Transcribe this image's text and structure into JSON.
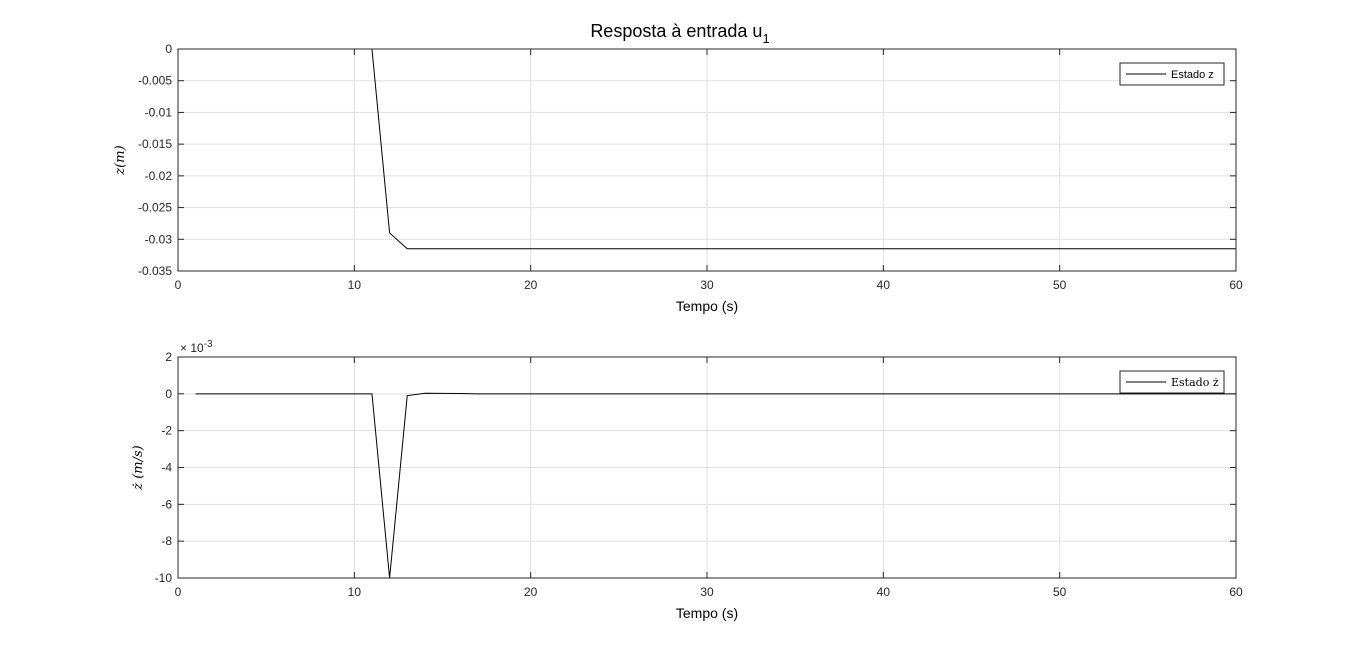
{
  "figure": {
    "title_main": "Resposta à entrada u",
    "title_sub": "1"
  },
  "chart_data": [
    {
      "type": "line",
      "title": "Resposta à entrada u1",
      "xlabel": "Tempo (s)",
      "ylabel": "z(m)",
      "xlim": [
        0,
        60
      ],
      "ylim": [
        -0.035,
        0
      ],
      "xticks": [
        0,
        10,
        20,
        30,
        40,
        50,
        60
      ],
      "yticks": [
        0,
        -0.005,
        -0.01,
        -0.015,
        -0.02,
        -0.025,
        -0.03,
        -0.035
      ],
      "ytick_labels": [
        "0",
        "-0.005",
        "-0.01",
        "-0.015",
        "-0.02",
        "-0.025",
        "-0.03",
        "-0.035"
      ],
      "grid": true,
      "legend_position": "top-right",
      "series": [
        {
          "name": "Estado z",
          "color": "#000000",
          "x": [
            11,
            12,
            13,
            60
          ],
          "y": [
            0,
            -0.029,
            -0.0315,
            -0.0315
          ]
        }
      ]
    },
    {
      "type": "line",
      "xlabel": "Tempo (s)",
      "ylabel": "ż (m/s)",
      "xlim": [
        0,
        60
      ],
      "ylim": [
        -10,
        2
      ],
      "y_exponent_label": "× 10",
      "y_exponent_value": "-3",
      "xticks": [
        0,
        10,
        20,
        30,
        40,
        50,
        60
      ],
      "yticks": [
        2,
        0,
        -2,
        -4,
        -6,
        -8,
        -10
      ],
      "ytick_labels": [
        "2",
        "0",
        "-2",
        "-4",
        "-6",
        "-8",
        "-10"
      ],
      "grid": true,
      "legend_position": "top-right",
      "series": [
        {
          "name": "Estado ż",
          "color": "#000000",
          "x": [
            1,
            11,
            12,
            13,
            14,
            16,
            17,
            60
          ],
          "y": [
            0,
            0,
            -10,
            -0.1,
            0.03,
            0.02,
            0,
            0
          ]
        }
      ]
    }
  ]
}
